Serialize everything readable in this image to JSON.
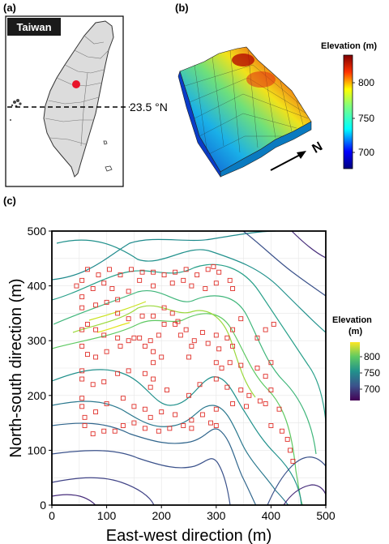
{
  "panels": {
    "a": {
      "label": "(a)",
      "map_title": "Taiwan",
      "latitude_label": "23.5 °N"
    },
    "b": {
      "label": "(b)",
      "colorbar_title": "Elevation (m)",
      "colorbar_ticks": [
        "800",
        "750",
        "700"
      ],
      "north_label": "N"
    },
    "c": {
      "label": "(c)",
      "colorbar_title_line1": "Elevation",
      "colorbar_title_line2": "(m)",
      "colorbar_ticks": [
        "800",
        "750",
        "700"
      ]
    }
  },
  "chart_data": {
    "type": "scatter",
    "xlabel": "East-west direction (m)",
    "ylabel": "North-south direction (m)",
    "xlim": [
      0,
      500
    ],
    "ylim": [
      0,
      500
    ],
    "xticks": [
      0,
      100,
      200,
      300,
      400,
      500
    ],
    "yticks": [
      0,
      100,
      200,
      300,
      400,
      500
    ],
    "grid": true,
    "marker_color": "#e0302a",
    "points": [
      [
        45,
        400
      ],
      [
        65,
        430
      ],
      [
        85,
        420
      ],
      [
        105,
        430
      ],
      [
        125,
        420
      ],
      [
        145,
        430
      ],
      [
        165,
        425
      ],
      [
        185,
        425
      ],
      [
        205,
        420
      ],
      [
        225,
        425
      ],
      [
        245,
        430
      ],
      [
        265,
        420
      ],
      [
        285,
        430
      ],
      [
        295,
        435
      ],
      [
        305,
        425
      ],
      [
        325,
        410
      ],
      [
        55,
        410
      ],
      [
        75,
        395
      ],
      [
        95,
        405
      ],
      [
        110,
        395
      ],
      [
        120,
        375
      ],
      [
        140,
        390
      ],
      [
        160,
        410
      ],
      [
        185,
        400
      ],
      [
        220,
        405
      ],
      [
        240,
        410
      ],
      [
        255,
        400
      ],
      [
        280,
        395
      ],
      [
        300,
        405
      ],
      [
        330,
        395
      ],
      [
        55,
        380
      ],
      [
        55,
        360
      ],
      [
        80,
        365
      ],
      [
        100,
        370
      ],
      [
        120,
        350
      ],
      [
        140,
        340
      ],
      [
        165,
        345
      ],
      [
        185,
        345
      ],
      [
        205,
        360
      ],
      [
        220,
        350
      ],
      [
        230,
        335
      ],
      [
        245,
        320
      ],
      [
        260,
        300
      ],
      [
        275,
        315
      ],
      [
        300,
        310
      ],
      [
        320,
        305
      ],
      [
        330,
        320
      ],
      [
        345,
        340
      ],
      [
        55,
        320
      ],
      [
        65,
        330
      ],
      [
        80,
        320
      ],
      [
        95,
        310
      ],
      [
        120,
        305
      ],
      [
        140,
        300
      ],
      [
        160,
        305
      ],
      [
        180,
        300
      ],
      [
        195,
        310
      ],
      [
        205,
        330
      ],
      [
        225,
        330
      ],
      [
        235,
        310
      ],
      [
        255,
        290
      ],
      [
        285,
        295
      ],
      [
        305,
        285
      ],
      [
        330,
        290
      ],
      [
        375,
        305
      ],
      [
        390,
        320
      ],
      [
        405,
        330
      ],
      [
        55,
        290
      ],
      [
        65,
        275
      ],
      [
        80,
        270
      ],
      [
        100,
        280
      ],
      [
        125,
        290
      ],
      [
        150,
        305
      ],
      [
        170,
        290
      ],
      [
        185,
        280
      ],
      [
        185,
        260
      ],
      [
        200,
        270
      ],
      [
        250,
        270
      ],
      [
        300,
        260
      ],
      [
        310,
        250
      ],
      [
        325,
        260
      ],
      [
        345,
        255
      ],
      [
        375,
        250
      ],
      [
        390,
        235
      ],
      [
        400,
        260
      ],
      [
        55,
        245
      ],
      [
        55,
        230
      ],
      [
        75,
        220
      ],
      [
        95,
        225
      ],
      [
        120,
        240
      ],
      [
        140,
        245
      ],
      [
        170,
        240
      ],
      [
        185,
        230
      ],
      [
        180,
        215
      ],
      [
        210,
        210
      ],
      [
        250,
        200
      ],
      [
        270,
        220
      ],
      [
        300,
        230
      ],
      [
        320,
        215
      ],
      [
        345,
        210
      ],
      [
        360,
        200
      ],
      [
        380,
        190
      ],
      [
        400,
        210
      ],
      [
        55,
        195
      ],
      [
        55,
        180
      ],
      [
        60,
        160
      ],
      [
        80,
        170
      ],
      [
        100,
        185
      ],
      [
        130,
        195
      ],
      [
        150,
        180
      ],
      [
        170,
        175
      ],
      [
        180,
        160
      ],
      [
        200,
        170
      ],
      [
        225,
        165
      ],
      [
        255,
        155
      ],
      [
        275,
        165
      ],
      [
        300,
        175
      ],
      [
        330,
        185
      ],
      [
        355,
        180
      ],
      [
        390,
        185
      ],
      [
        415,
        175
      ],
      [
        60,
        145
      ],
      [
        75,
        130
      ],
      [
        95,
        135
      ],
      [
        115,
        135
      ],
      [
        130,
        145
      ],
      [
        150,
        150
      ],
      [
        170,
        140
      ],
      [
        195,
        135
      ],
      [
        215,
        140
      ],
      [
        240,
        145
      ],
      [
        255,
        140
      ],
      [
        290,
        150
      ],
      [
        300,
        145
      ],
      [
        400,
        145
      ],
      [
        420,
        135
      ],
      [
        430,
        120
      ],
      [
        435,
        100
      ],
      [
        440,
        80
      ]
    ]
  }
}
